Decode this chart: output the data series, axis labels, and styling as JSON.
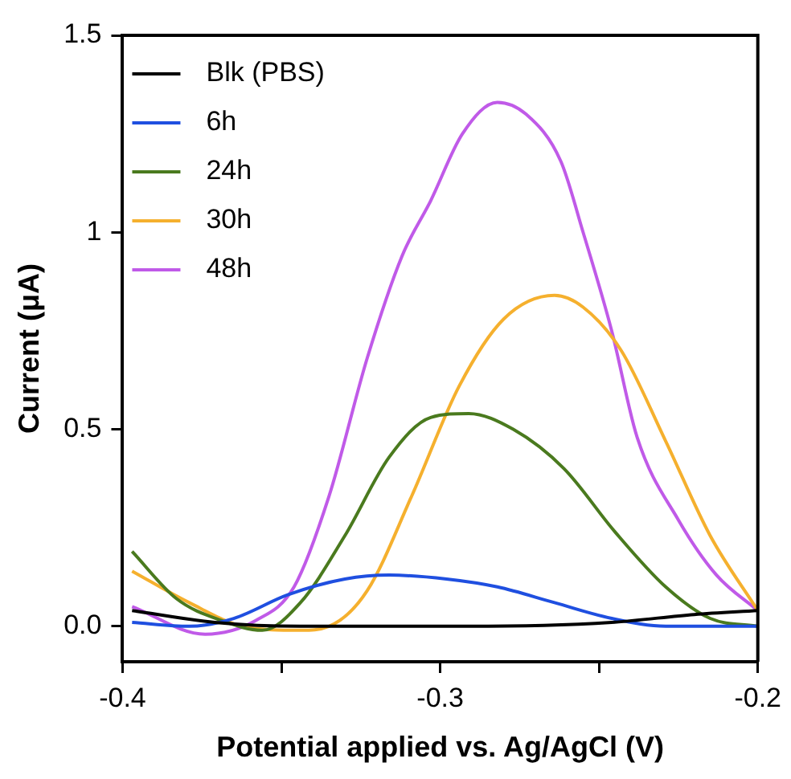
{
  "chart_data": {
    "type": "line",
    "xlabel": "Potential applied vs. Ag/AgCl (V)",
    "ylabel": "Current (μA)",
    "xlim": [
      -0.4,
      -0.2
    ],
    "xticks": [
      -0.4,
      {
        "value": -0.35,
        "label": null
      },
      -0.3,
      {
        "value": -0.25,
        "label": null
      },
      -0.2
    ],
    "ylim": [
      -0.09,
      1.5
    ],
    "yticks": [
      {
        "value": 0,
        "label": "0.0"
      },
      0.5,
      1,
      1.5
    ],
    "grid": false,
    "legend": "top left",
    "marker": "none",
    "line_style": "solid",
    "series": [
      {
        "name": "Blk (PBS)",
        "color": "#000000",
        "x": [
          -0.397,
          -0.371,
          -0.344,
          -0.291,
          -0.246,
          -0.22,
          -0.2
        ],
        "values": [
          0.04,
          0.01,
          0.0,
          0.0,
          0.01,
          0.03,
          0.04
        ]
      },
      {
        "name": "6h",
        "color": "#1f4fe0",
        "x": [
          -0.397,
          -0.379,
          -0.365,
          -0.348,
          -0.33,
          -0.316,
          -0.298,
          -0.282,
          -0.264,
          -0.246,
          -0.229,
          -0.2
        ],
        "values": [
          0.01,
          0.0,
          0.02,
          0.08,
          0.12,
          0.13,
          0.12,
          0.1,
          0.06,
          0.02,
          0.0,
          0.0
        ]
      },
      {
        "name": "24h",
        "color": "#4a7a1e",
        "x": [
          -0.397,
          -0.383,
          -0.369,
          -0.356,
          -0.344,
          -0.33,
          -0.316,
          -0.303,
          -0.291,
          -0.277,
          -0.261,
          -0.245,
          -0.229,
          -0.215,
          -0.2
        ],
        "values": [
          0.19,
          0.07,
          0.015,
          -0.01,
          0.06,
          0.23,
          0.43,
          0.53,
          0.54,
          0.5,
          0.4,
          0.24,
          0.1,
          0.02,
          0.0
        ]
      },
      {
        "name": "30h",
        "color": "#f5b02e",
        "x": [
          -0.397,
          -0.379,
          -0.362,
          -0.344,
          -0.335,
          -0.323,
          -0.309,
          -0.294,
          -0.28,
          -0.264,
          -0.255,
          -0.243,
          -0.229,
          -0.215,
          -0.2
        ],
        "values": [
          0.14,
          0.06,
          0.0,
          -0.01,
          0.0,
          0.09,
          0.33,
          0.61,
          0.78,
          0.84,
          0.81,
          0.7,
          0.47,
          0.23,
          0.04
        ]
      },
      {
        "name": "48h",
        "color": "#c05ae8",
        "x": [
          -0.397,
          -0.374,
          -0.358,
          -0.346,
          -0.335,
          -0.323,
          -0.312,
          -0.303,
          -0.293,
          -0.282,
          -0.273,
          -0.262,
          -0.255,
          -0.246,
          -0.238,
          -0.225,
          -0.213,
          -0.2
        ],
        "values": [
          0.05,
          -0.02,
          0.015,
          0.1,
          0.33,
          0.68,
          0.94,
          1.08,
          1.25,
          1.33,
          1.3,
          1.18,
          1.0,
          0.75,
          0.48,
          0.27,
          0.13,
          0.04
        ]
      }
    ]
  }
}
